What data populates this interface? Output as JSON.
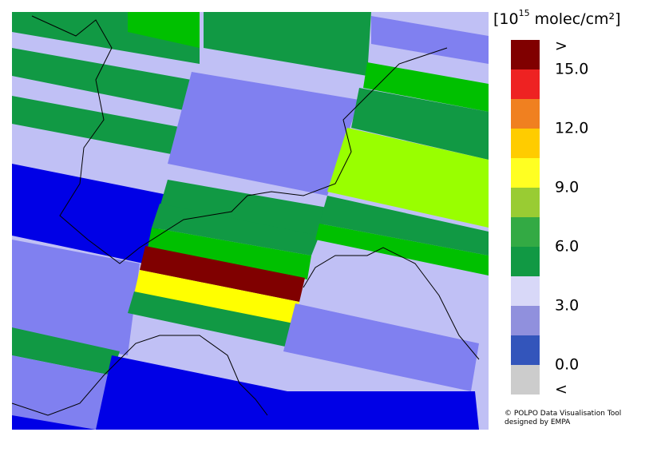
{
  "legend": {
    "title_base": "[10",
    "title_exponent": "15",
    "title_unit": " molec/cm²]",
    "colors": [
      "#800000",
      "#ee2222",
      "#f08020",
      "#ffcc00",
      "#ffff22",
      "#99cc33",
      "#33aa44",
      "#119944",
      "#d8d8f8",
      "#9090dd",
      "#3355bb",
      "#cccccc"
    ],
    "labels": [
      ">",
      "15.0",
      "12.0",
      "9.0",
      "6.0",
      "3.0",
      "0.0",
      "<"
    ]
  },
  "credit": [
    "© POLPO Data Visualisation Tool",
    "designed by EMPA"
  ]
}
